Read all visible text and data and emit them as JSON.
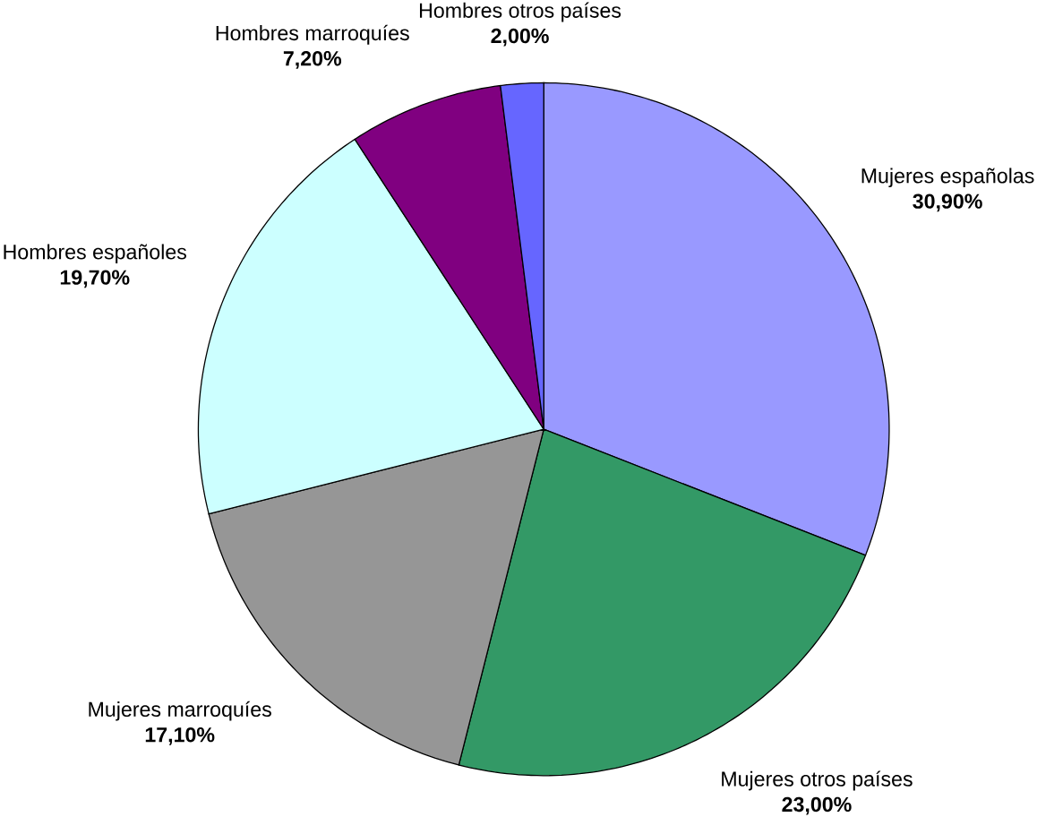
{
  "chart_data": {
    "type": "pie",
    "categories": [
      "Mujeres españolas",
      "Mujeres otros países",
      "Mujeres marroquíes",
      "Hombres españoles",
      "Hombres marroquíes",
      "Hombres otros países"
    ],
    "values": [
      30.9,
      23.0,
      17.1,
      19.7,
      7.2,
      2.0
    ],
    "value_labels": [
      "30,90%",
      "23,00%",
      "17,10%",
      "19,70%",
      "7,20%",
      "2,00%"
    ],
    "colors": [
      "#9999ff",
      "#339966",
      "#969696",
      "#ccffff",
      "#800080",
      "#6666ff"
    ]
  }
}
